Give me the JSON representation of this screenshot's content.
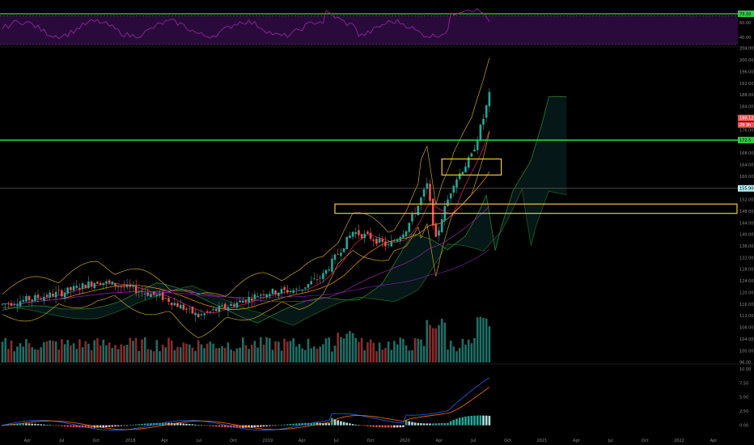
{
  "chart_data": [
    {
      "type": "line",
      "title": "",
      "yticks": [
        "60.00",
        "40.00"
      ],
      "y_range": [
        30,
        90
      ],
      "levels": [
        70,
        30
      ],
      "line_color": "#9c27b0",
      "fill_color": "#2a0a3a",
      "green_level": 73,
      "green_tag": "73.10",
      "green_tag_color": "#2ecc40"
    },
    {
      "type": "candlestick",
      "title": "",
      "yticks": [
        "204.00",
        "200.00",
        "196.00",
        "192.00",
        "188.00",
        "184.00",
        "180.00",
        "176.00",
        "172.00",
        "168.00",
        "164.00",
        "160.00",
        "156.00",
        "152.00",
        "148.00",
        "144.00",
        "140.00",
        "136.00",
        "132.00",
        "128.00",
        "124.00",
        "120.00",
        "116.00",
        "112.00",
        "108.00",
        "104.00",
        "100.00",
        "96.00"
      ],
      "y_range": [
        96,
        204
      ],
      "colors": {
        "up": "#26a69a",
        "down": "#ef5350",
        "volume_up": "#1f6e66",
        "volume_down": "#8b2b2b"
      },
      "current_price_tag": "180.12",
      "current_price_tag_color": "#ef5350",
      "second_tag": "29 3h",
      "green_line_tag": "172.5",
      "green_line_price": 172.5,
      "gray_line_tag": "155.90",
      "gray_line_price": 155.9,
      "zones": [
        {
          "price_top": 166,
          "price_bottom": 160.5,
          "color": "#f5c542"
        },
        {
          "price_top": 150.5,
          "price_bottom": 147.3,
          "color": "#f5c542"
        }
      ]
    },
    {
      "type": "line",
      "title": "",
      "yticks": [
        "10.00",
        "7.50",
        "5.00",
        "2.50",
        "0.00"
      ],
      "y_range": [
        -1.5,
        10.5
      ],
      "macd_color": "#2962ff",
      "signal_color": "#ff6d00"
    }
  ],
  "time_axis": [
    "Apr",
    "Jul",
    "Oct",
    "2018",
    "Apr",
    "Jul",
    "Oct",
    "2019",
    "Apr",
    "Jul",
    "Oct",
    "2020",
    "Apr",
    "Jul",
    "Oct",
    "2021",
    "Apr",
    "Jul",
    "Oct",
    "2022",
    "Apr"
  ]
}
